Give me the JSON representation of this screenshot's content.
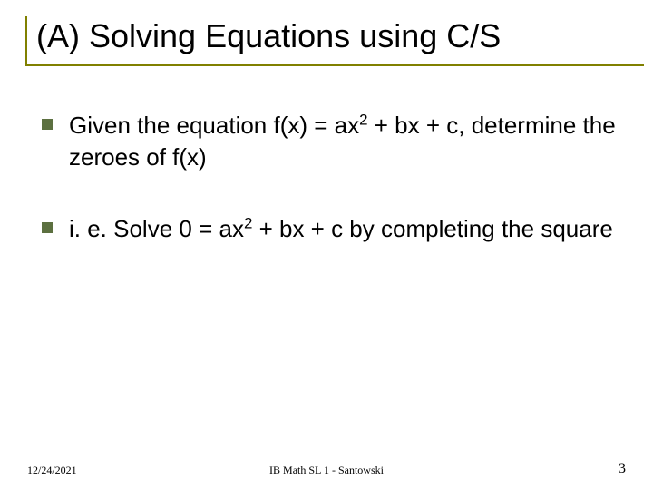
{
  "title": "(A) Solving Equations using C/S",
  "bullets": [
    {
      "pre": "Given the equation f(x) = ax",
      "sup": "2",
      "post": " + bx + c, determine the zeroes of f(x)"
    },
    {
      "pre": "i. e. Solve 0 = ax",
      "sup": "2",
      "post": " + bx + c by completing the square"
    }
  ],
  "footer": {
    "date": "12/24/2021",
    "center": "IB Math SL 1 - Santowski",
    "page": "3"
  },
  "colors": {
    "accent": "#808000",
    "bullet_box": "#5c7040",
    "text": "#000000",
    "background": "#ffffff"
  }
}
